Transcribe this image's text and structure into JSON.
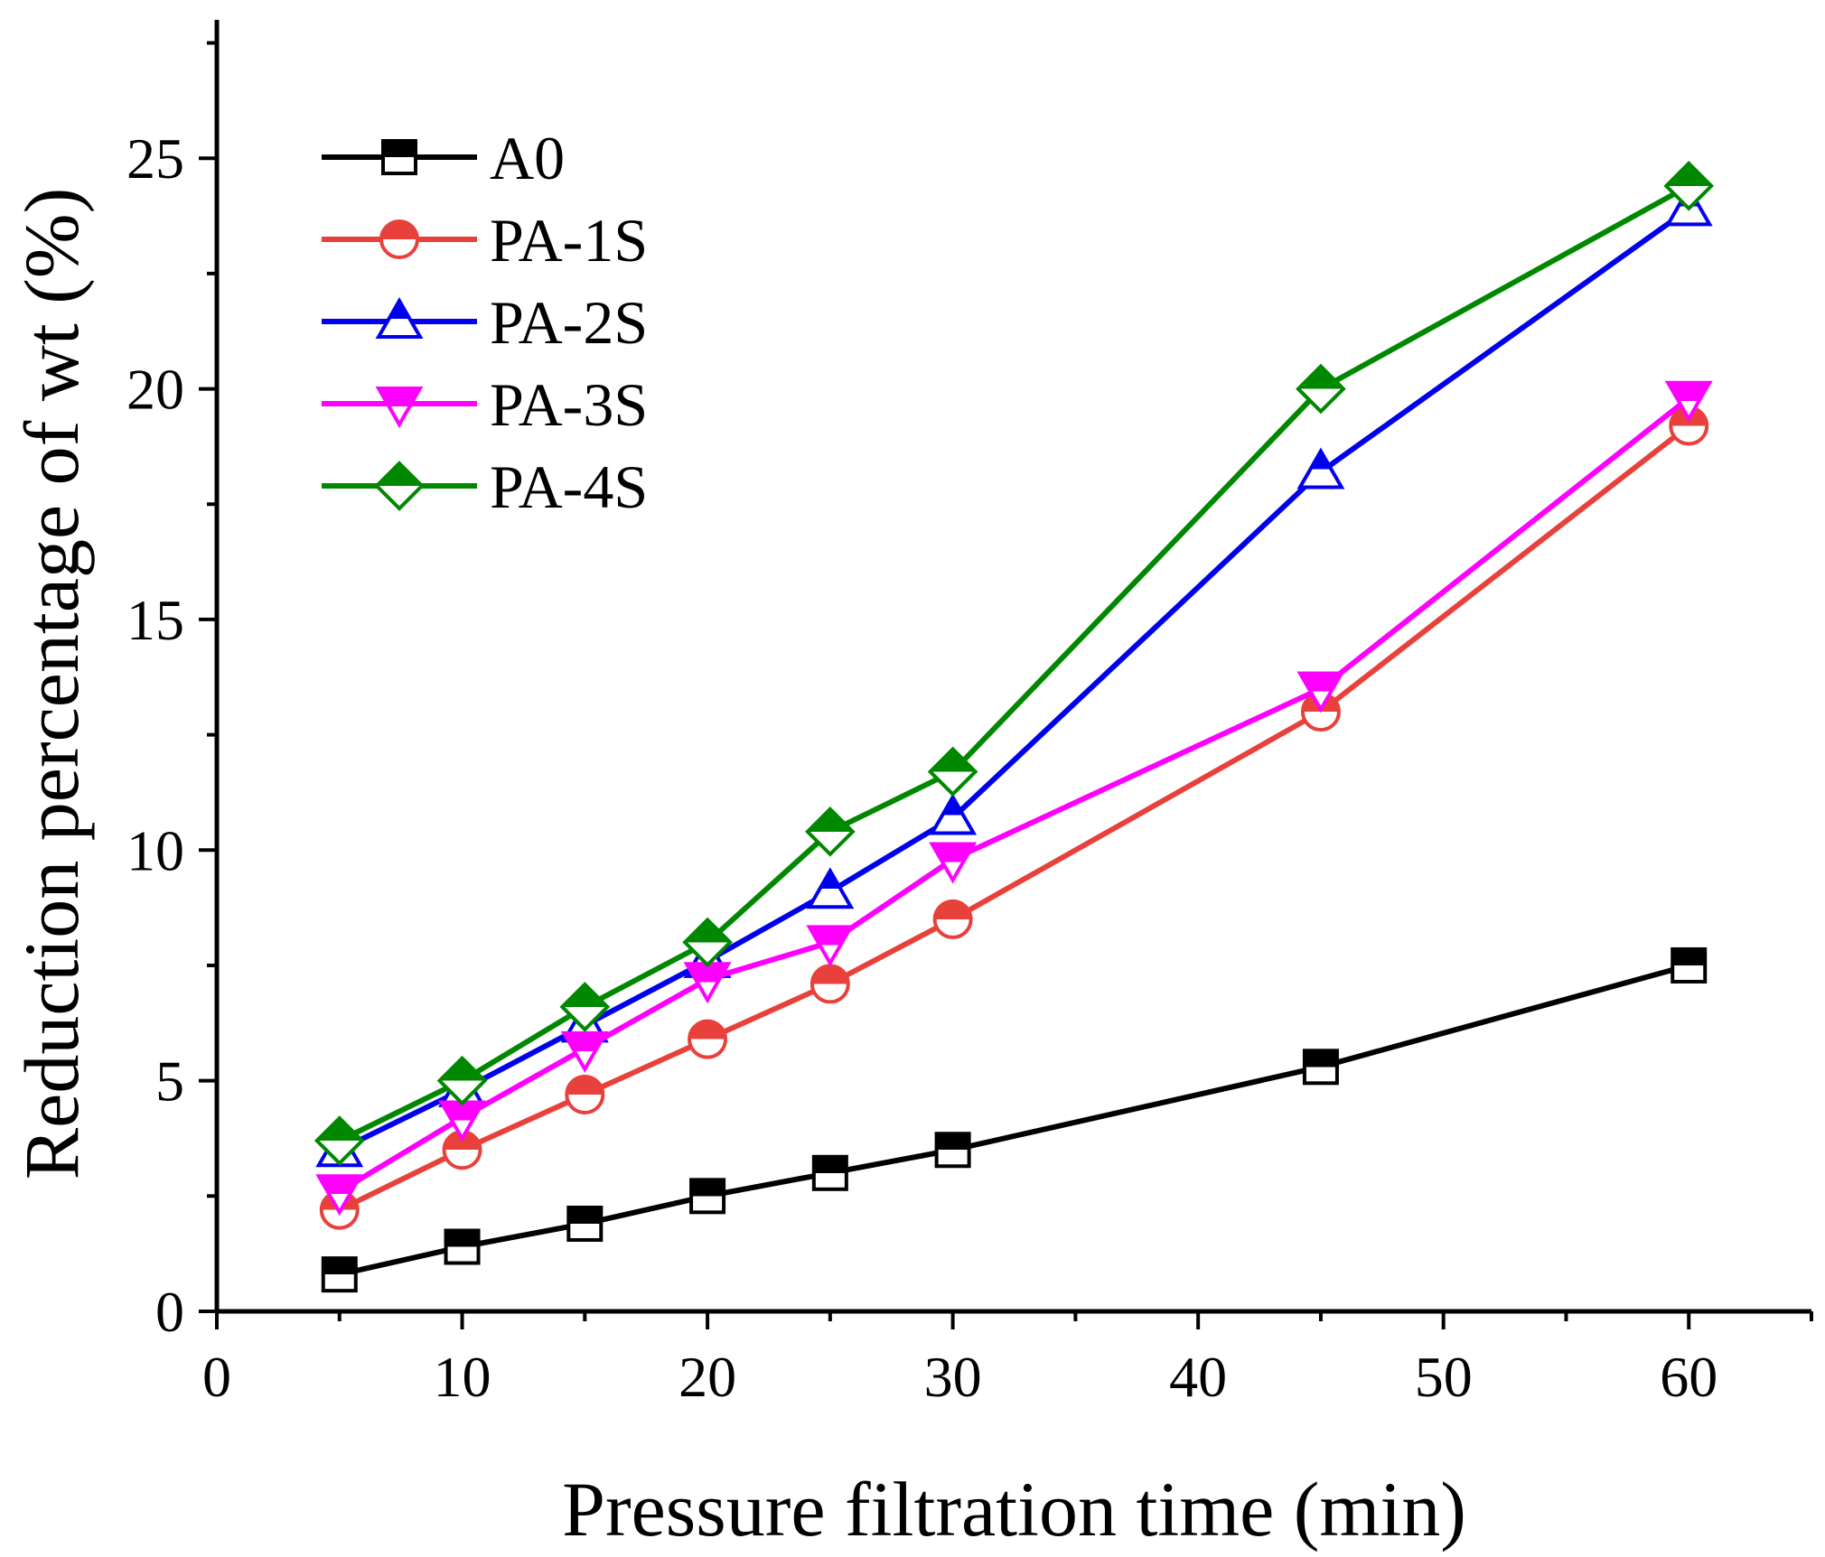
{
  "chart_data": {
    "type": "line",
    "title": "",
    "xlabel": "Pressure filtration time (min)",
    "ylabel": "Reduction percentage of wt (%)",
    "xlim": [
      0,
      65
    ],
    "ylim": [
      0,
      28
    ],
    "xticks": [
      0,
      10,
      20,
      30,
      40,
      50,
      60
    ],
    "yticks": [
      0,
      5,
      10,
      15,
      20,
      25
    ],
    "grid": false,
    "legend_position": "top-left",
    "x": [
      5,
      10,
      15,
      20,
      25,
      30,
      45,
      60
    ],
    "series": [
      {
        "name": "A0",
        "color": "#000000",
        "marker": "square-half",
        "values": [
          0.8,
          1.4,
          1.9,
          2.5,
          3.0,
          3.5,
          5.3,
          7.5
        ]
      },
      {
        "name": "PA-1S",
        "color": "#e8413c",
        "marker": "circle-half",
        "values": [
          2.2,
          3.5,
          4.7,
          5.9,
          7.1,
          8.5,
          13.0,
          19.2
        ]
      },
      {
        "name": "PA-2S",
        "color": "#0000ee",
        "marker": "triangle-up-half",
        "values": [
          3.5,
          4.8,
          6.2,
          7.6,
          9.1,
          10.7,
          18.2,
          23.9
        ]
      },
      {
        "name": "PA-3S",
        "color": "#ff00ff",
        "marker": "triangle-down-half",
        "values": [
          2.6,
          4.2,
          5.7,
          7.2,
          8.0,
          9.8,
          13.5,
          19.8
        ]
      },
      {
        "name": "PA-4S",
        "color": "#008800",
        "marker": "diamond-half",
        "values": [
          3.7,
          5.0,
          6.6,
          8.0,
          10.4,
          11.7,
          20.0,
          24.4
        ]
      }
    ]
  }
}
